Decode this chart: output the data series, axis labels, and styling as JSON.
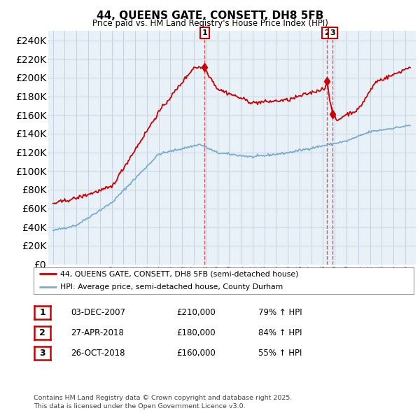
{
  "title": "44, QUEENS GATE, CONSETT, DH8 5FB",
  "subtitle": "Price paid vs. HM Land Registry's House Price Index (HPI)",
  "legend1_label": "44, QUEENS GATE, CONSETT, DH8 5FB (semi-detached house)",
  "legend2_label": "HPI: Average price, semi-detached house, County Durham",
  "transactions": [
    {
      "num": 1,
      "date": "03-DEC-2007",
      "price": "£210,000",
      "hpi": "79% ↑ HPI",
      "year": 2007.92,
      "red_price": 210000
    },
    {
      "num": 2,
      "date": "27-APR-2018",
      "price": "£180,000",
      "hpi": "84% ↑ HPI",
      "year": 2018.33,
      "red_price": 180000
    },
    {
      "num": 3,
      "date": "26-OCT-2018",
      "price": "£160,000",
      "hpi": "55% ↑ HPI",
      "year": 2018.82,
      "red_price": 160000
    }
  ],
  "footer": "Contains HM Land Registry data © Crown copyright and database right 2025.\nThis data is licensed under the Open Government Licence v3.0.",
  "red_color": "#cc0000",
  "blue_color": "#7aadcf",
  "chart_bg": "#e8f0f8",
  "vline_color": "#dd4444",
  "background_color": "#ffffff",
  "grid_color": "#c8d4e0",
  "ylim": [
    0,
    250000
  ],
  "yticks": [
    0,
    20000,
    40000,
    60000,
    80000,
    100000,
    120000,
    140000,
    160000,
    180000,
    200000,
    220000,
    240000
  ],
  "xlim_start": 1994.6,
  "xlim_end": 2025.9
}
